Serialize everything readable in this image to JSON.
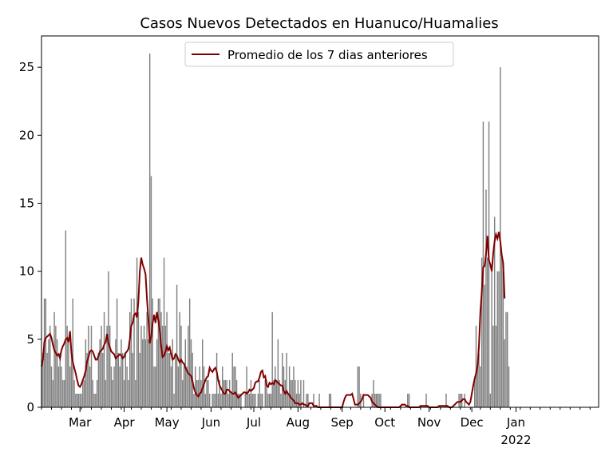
{
  "chart_data": {
    "type": "bar",
    "title": "Casos Nuevos Detectados en Huanuco/Huamalies",
    "xlabel": "",
    "ylabel": "",
    "x_start": "2021-02-02",
    "x_end": "2022-02-28",
    "xlim": [
      "2021-02-02",
      "2022-02-28"
    ],
    "ylim": [
      0,
      27.3
    ],
    "y_ticks": [
      0,
      5,
      10,
      15,
      20,
      25
    ],
    "x_ticks": [
      {
        "date": "2021-03-01",
        "label": "Mar",
        "sublabel": ""
      },
      {
        "date": "2021-04-01",
        "label": "Apr",
        "sublabel": ""
      },
      {
        "date": "2021-05-01",
        "label": "May",
        "sublabel": ""
      },
      {
        "date": "2021-06-01",
        "label": "Jun",
        "sublabel": ""
      },
      {
        "date": "2021-07-01",
        "label": "Jul",
        "sublabel": ""
      },
      {
        "date": "2021-08-01",
        "label": "Aug",
        "sublabel": ""
      },
      {
        "date": "2021-09-01",
        "label": "Sep",
        "sublabel": ""
      },
      {
        "date": "2021-10-01",
        "label": "Oct",
        "sublabel": ""
      },
      {
        "date": "2021-11-01",
        "label": "Nov",
        "sublabel": ""
      },
      {
        "date": "2021-12-01",
        "label": "Dec",
        "sublabel": ""
      },
      {
        "date": "2022-01-01",
        "label": "Jan",
        "sublabel": "2022"
      }
    ],
    "grid": false,
    "legend_position": "upper center",
    "bar_color": "#808080",
    "line_color": "#800000",
    "line_series_name": "Promedio de los 7 dias anteriores",
    "daily_values": [
      3,
      4,
      8,
      8,
      4,
      5,
      6,
      3,
      2,
      7,
      6,
      5,
      3,
      4,
      3,
      2,
      2,
      13,
      6,
      5,
      3,
      4,
      8,
      2,
      1,
      1,
      1,
      1,
      1,
      2,
      2,
      5,
      4,
      6,
      3,
      6,
      2,
      1,
      1,
      2,
      4,
      5,
      6,
      4,
      7,
      2,
      6,
      10,
      6,
      3,
      2,
      3,
      5,
      8,
      4,
      3,
      5,
      4,
      2,
      4,
      3,
      2,
      7,
      8,
      4,
      8,
      2,
      11,
      7,
      4,
      6,
      5,
      6,
      5,
      7,
      5,
      26,
      17,
      8,
      3,
      3,
      5,
      8,
      8,
      7,
      6,
      11,
      6,
      7,
      4,
      4,
      3,
      5,
      1,
      4,
      9,
      3,
      7,
      6,
      2,
      3,
      5,
      3,
      6,
      8,
      5,
      4,
      1,
      3,
      2,
      2,
      3,
      2,
      5,
      3,
      1,
      2,
      2,
      1,
      0,
      1,
      1,
      1,
      4,
      1,
      2,
      1,
      3,
      2,
      2,
      2,
      1,
      2,
      1,
      4,
      3,
      3,
      2,
      1,
      1,
      1,
      0,
      0,
      1,
      3,
      1,
      1,
      2,
      1,
      1,
      1,
      0,
      1,
      2,
      1,
      1,
      0,
      2,
      2,
      1,
      1,
      1,
      7,
      2,
      3,
      2,
      5,
      2,
      1,
      4,
      3,
      2,
      4,
      1,
      3,
      2,
      2,
      3,
      2,
      1,
      2,
      1,
      2,
      0,
      2,
      0,
      1,
      1,
      0,
      0,
      0,
      1,
      0,
      0,
      0,
      1,
      0,
      0,
      0,
      0,
      0,
      0,
      1,
      1,
      0,
      0,
      0,
      0,
      0,
      0,
      0,
      0,
      0,
      0,
      0,
      0,
      0,
      0,
      0,
      0,
      0,
      0,
      3,
      3,
      1,
      0,
      1,
      0,
      0,
      0,
      0,
      0,
      1,
      2,
      1,
      1,
      1,
      1,
      1,
      0,
      0,
      0,
      0,
      0,
      0,
      0,
      0,
      0,
      0,
      0,
      0,
      0,
      0,
      0,
      0,
      0,
      0,
      1,
      1,
      0,
      0,
      0,
      0,
      0,
      0,
      0,
      0,
      0,
      0,
      0,
      1,
      0,
      0,
      0,
      0,
      0,
      0,
      0,
      0,
      0,
      0,
      0,
      0,
      0,
      1,
      0,
      0,
      0,
      0,
      0,
      0,
      0,
      0,
      1,
      1,
      1,
      0,
      1,
      0,
      0,
      0,
      0,
      0,
      0,
      2,
      6,
      3,
      4,
      3,
      11,
      21,
      9,
      16,
      11,
      21,
      1,
      10,
      6,
      14,
      6,
      10,
      10,
      25,
      11,
      10,
      5,
      7,
      7,
      3
    ],
    "rolling_avg_7d": [
      3,
      3.5,
      4.8,
      5.1,
      5.2,
      5.3,
      5.4,
      5.1,
      4.6,
      4.2,
      4,
      3.8,
      3.9,
      3.6,
      4.2,
      4.5,
      4.7,
      5,
      5.1,
      4.8,
      5.6,
      4,
      3.3,
      2.9,
      2.5,
      2,
      1.6,
      1.5,
      1.7,
      2,
      2.3,
      2.7,
      3.4,
      3.7,
      4.1,
      4.2,
      4.1,
      3.8,
      3.5,
      3.5,
      3.8,
      4.1,
      4.2,
      4.3,
      4.6,
      4.8,
      5.4,
      4.7,
      4.4,
      4.1,
      4,
      3.9,
      3.6,
      3.7,
      3.8,
      3.9,
      3.8,
      3.6,
      3.7,
      4,
      4.1,
      4.3,
      5,
      6,
      6.2,
      6.8,
      6.9,
      6.6,
      7.8,
      10,
      11,
      10.5,
      10.2,
      9.8,
      8,
      6.5,
      4.7,
      5.2,
      6.2,
      6.8,
      6.2,
      7,
      6.4,
      5.6,
      4.5,
      3.7,
      3.8,
      4.1,
      4.5,
      4.2,
      4.4,
      3.9,
      3.5,
      3.6,
      3.9,
      3.8,
      3.5,
      3.3,
      3.5,
      3.3,
      3.2,
      2.9,
      2.7,
      2.5,
      2.4,
      2.3,
      1.9,
      1.4,
      1.1,
      0.9,
      0.8,
      1,
      1.1,
      1.4,
      1.7,
      2,
      2.2,
      2.3,
      2.9,
      2.7,
      2.6,
      2.8,
      2.9,
      2.6,
      2,
      1.6,
      1.4,
      1.2,
      1,
      1,
      1.3,
      1.3,
      1.2,
      1.1,
      1,
      1,
      1.1,
      0.9,
      0.7,
      0.8,
      0.9,
      1,
      1.1,
      1.1,
      1,
      1.1,
      1.3,
      1.2,
      1.3,
      1.4,
      1.8,
      1.9,
      1.9,
      2.2,
      2.6,
      2.7,
      2.2,
      2.3,
      1.6,
      1.5,
      1.8,
      1.7,
      1.8,
      1.7,
      2,
      1.9,
      1.8,
      1.7,
      1.6,
      1.6,
      1.2,
      1,
      1.2,
      1,
      0.9,
      0.7,
      0.6,
      0.5,
      0.3,
      0.3,
      0.3,
      0.2,
      0.2,
      0.3,
      0.2,
      0.2,
      0.1,
      0.1,
      0.3,
      0.3,
      0.3,
      0.1,
      0.1,
      0.1,
      0,
      0,
      0,
      0,
      0,
      0,
      0,
      0,
      0,
      0,
      0,
      0,
      0,
      0,
      0,
      0,
      0,
      0,
      0.4,
      0.7,
      0.9,
      0.9,
      0.9,
      0.9,
      1,
      0.6,
      0.2,
      0.2,
      0.2,
      0.3,
      0.4,
      0.6,
      0.9,
      0.9,
      0.9,
      0.9,
      0.8,
      0.7,
      0.4,
      0.3,
      0.2,
      0.1,
      0,
      0,
      0,
      0,
      0,
      0,
      0,
      0,
      0,
      0,
      0,
      0,
      0,
      0,
      0,
      0,
      0.1,
      0.2,
      0.2,
      0.2,
      0.1,
      0.1,
      0,
      0,
      0,
      0,
      0,
      0,
      0,
      0,
      0.1,
      0.1,
      0.1,
      0.1,
      0.1,
      0.1,
      0,
      0,
      0,
      0,
      0,
      0,
      0,
      0.1,
      0.1,
      0.1,
      0.1,
      0.1,
      0.1,
      0.1,
      0,
      0,
      0,
      0.1,
      0.2,
      0.3,
      0.4,
      0.4,
      0.4,
      0.5,
      0.6,
      0.6,
      0.4,
      0.3,
      0.2,
      0.4,
      1,
      1.6,
      2.1,
      2.5,
      3,
      4.5,
      7,
      8.5,
      10.3,
      10.4,
      11.3,
      12.6,
      10.8,
      10.5,
      10,
      11.3,
      12.2,
      12.7,
      12.4,
      12.9,
      12.2,
      11.2,
      10.6,
      8
    ]
  }
}
